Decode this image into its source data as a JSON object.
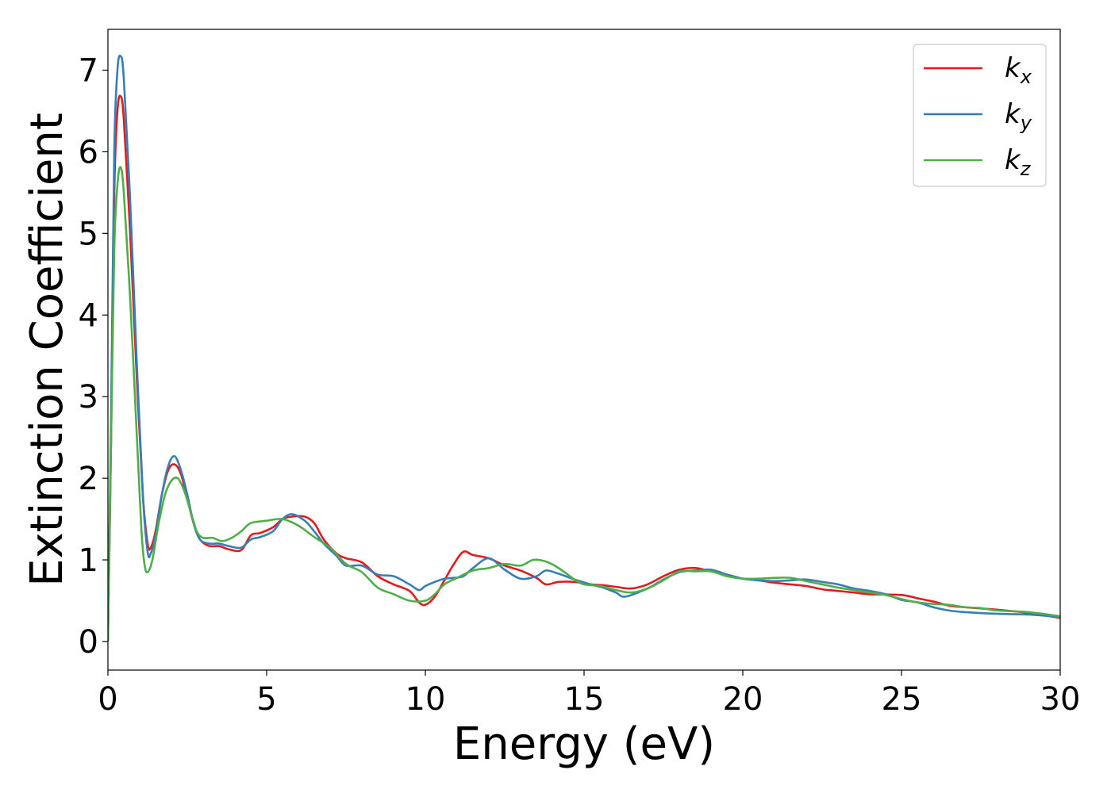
{
  "chart_data": {
    "type": "line",
    "title": "",
    "xlabel": "Energy (eV)",
    "ylabel": "Extinction Coefficient",
    "xlim": [
      0,
      30
    ],
    "ylim": [
      -0.35,
      7.5
    ],
    "xticks": [
      0,
      5,
      10,
      15,
      20,
      25,
      30
    ],
    "yticks": [
      0,
      1,
      2,
      3,
      4,
      5,
      6,
      7
    ],
    "grid": false,
    "legend_position": "top-right",
    "series": [
      {
        "name": "k_x",
        "label_base": "k",
        "label_sub": "x",
        "color": "#e41a1c",
        "points": [
          [
            0,
            0
          ],
          [
            0.1,
            2.5
          ],
          [
            0.2,
            5.5
          ],
          [
            0.3,
            6.5
          ],
          [
            0.4,
            6.68
          ],
          [
            0.5,
            6.4
          ],
          [
            0.7,
            5.0
          ],
          [
            0.9,
            3.3
          ],
          [
            1.1,
            1.8
          ],
          [
            1.25,
            1.2
          ],
          [
            1.35,
            1.15
          ],
          [
            1.5,
            1.35
          ],
          [
            1.7,
            1.8
          ],
          [
            1.9,
            2.1
          ],
          [
            2.1,
            2.17
          ],
          [
            2.3,
            2.05
          ],
          [
            2.5,
            1.75
          ],
          [
            2.7,
            1.45
          ],
          [
            2.9,
            1.25
          ],
          [
            3.2,
            1.17
          ],
          [
            3.5,
            1.17
          ],
          [
            3.8,
            1.13
          ],
          [
            4.2,
            1.12
          ],
          [
            4.5,
            1.3
          ],
          [
            4.8,
            1.33
          ],
          [
            5.2,
            1.4
          ],
          [
            5.5,
            1.5
          ],
          [
            5.8,
            1.53
          ],
          [
            6.2,
            1.53
          ],
          [
            6.5,
            1.45
          ],
          [
            6.8,
            1.25
          ],
          [
            7.2,
            1.08
          ],
          [
            7.5,
            1.02
          ],
          [
            8.0,
            0.97
          ],
          [
            8.5,
            0.8
          ],
          [
            9.0,
            0.7
          ],
          [
            9.5,
            0.62
          ],
          [
            9.8,
            0.48
          ],
          [
            10.0,
            0.45
          ],
          [
            10.3,
            0.55
          ],
          [
            10.6,
            0.75
          ],
          [
            10.9,
            0.95
          ],
          [
            11.2,
            1.1
          ],
          [
            11.5,
            1.06
          ],
          [
            12.0,
            1.02
          ],
          [
            12.5,
            0.93
          ],
          [
            13.0,
            0.87
          ],
          [
            13.5,
            0.78
          ],
          [
            13.8,
            0.7
          ],
          [
            14.2,
            0.73
          ],
          [
            14.7,
            0.73
          ],
          [
            15.2,
            0.7
          ],
          [
            15.6,
            0.69
          ],
          [
            16.0,
            0.67
          ],
          [
            16.5,
            0.65
          ],
          [
            17.0,
            0.7
          ],
          [
            17.5,
            0.8
          ],
          [
            18.0,
            0.88
          ],
          [
            18.5,
            0.9
          ],
          [
            19.0,
            0.86
          ],
          [
            19.5,
            0.82
          ],
          [
            20.0,
            0.77
          ],
          [
            20.5,
            0.75
          ],
          [
            21.0,
            0.72
          ],
          [
            21.5,
            0.7
          ],
          [
            22.0,
            0.68
          ],
          [
            22.5,
            0.64
          ],
          [
            23.0,
            0.62
          ],
          [
            23.5,
            0.6
          ],
          [
            24.0,
            0.58
          ],
          [
            25.0,
            0.57
          ],
          [
            25.5,
            0.53
          ],
          [
            26.0,
            0.49
          ],
          [
            26.5,
            0.44
          ],
          [
            27.0,
            0.42
          ],
          [
            28.0,
            0.39
          ],
          [
            29.0,
            0.35
          ],
          [
            30.0,
            0.29
          ]
        ]
      },
      {
        "name": "k_y",
        "label_base": "k",
        "label_sub": "y",
        "color": "#377eb8",
        "points": [
          [
            0,
            0
          ],
          [
            0.1,
            2.8
          ],
          [
            0.2,
            6.0
          ],
          [
            0.3,
            7.0
          ],
          [
            0.4,
            7.17
          ],
          [
            0.5,
            6.9
          ],
          [
            0.7,
            5.4
          ],
          [
            0.9,
            3.5
          ],
          [
            1.1,
            1.8
          ],
          [
            1.25,
            1.1
          ],
          [
            1.35,
            1.08
          ],
          [
            1.5,
            1.3
          ],
          [
            1.7,
            1.8
          ],
          [
            1.9,
            2.15
          ],
          [
            2.1,
            2.27
          ],
          [
            2.3,
            2.1
          ],
          [
            2.5,
            1.8
          ],
          [
            2.7,
            1.45
          ],
          [
            2.9,
            1.25
          ],
          [
            3.2,
            1.2
          ],
          [
            3.5,
            1.2
          ],
          [
            3.8,
            1.17
          ],
          [
            4.2,
            1.15
          ],
          [
            4.5,
            1.25
          ],
          [
            4.8,
            1.28
          ],
          [
            5.2,
            1.35
          ],
          [
            5.5,
            1.5
          ],
          [
            5.8,
            1.56
          ],
          [
            6.2,
            1.48
          ],
          [
            6.5,
            1.35
          ],
          [
            6.8,
            1.2
          ],
          [
            7.2,
            1.05
          ],
          [
            7.5,
            0.93
          ],
          [
            8.0,
            0.93
          ],
          [
            8.5,
            0.82
          ],
          [
            9.0,
            0.8
          ],
          [
            9.5,
            0.7
          ],
          [
            9.8,
            0.63
          ],
          [
            10.0,
            0.68
          ],
          [
            10.3,
            0.73
          ],
          [
            10.6,
            0.77
          ],
          [
            10.9,
            0.78
          ],
          [
            11.2,
            0.8
          ],
          [
            11.5,
            0.9
          ],
          [
            12.0,
            1.02
          ],
          [
            12.5,
            0.88
          ],
          [
            13.0,
            0.77
          ],
          [
            13.5,
            0.8
          ],
          [
            13.8,
            0.87
          ],
          [
            14.2,
            0.83
          ],
          [
            14.7,
            0.76
          ],
          [
            15.2,
            0.7
          ],
          [
            15.6,
            0.66
          ],
          [
            16.0,
            0.6
          ],
          [
            16.3,
            0.55
          ],
          [
            17.0,
            0.65
          ],
          [
            17.5,
            0.76
          ],
          [
            18.0,
            0.85
          ],
          [
            18.5,
            0.87
          ],
          [
            19.0,
            0.88
          ],
          [
            19.5,
            0.82
          ],
          [
            20.0,
            0.77
          ],
          [
            20.5,
            0.75
          ],
          [
            21.0,
            0.74
          ],
          [
            21.5,
            0.75
          ],
          [
            22.0,
            0.76
          ],
          [
            22.5,
            0.73
          ],
          [
            23.0,
            0.7
          ],
          [
            23.5,
            0.65
          ],
          [
            24.0,
            0.62
          ],
          [
            24.5,
            0.58
          ],
          [
            25.0,
            0.51
          ],
          [
            25.5,
            0.48
          ],
          [
            26.0,
            0.42
          ],
          [
            26.5,
            0.38
          ],
          [
            27.0,
            0.36
          ],
          [
            28.0,
            0.34
          ],
          [
            29.0,
            0.33
          ],
          [
            30.0,
            0.3
          ]
        ]
      },
      {
        "name": "k_z",
        "label_base": "k",
        "label_sub": "z",
        "color": "#4daf4a",
        "points": [
          [
            0,
            0
          ],
          [
            0.1,
            2.5
          ],
          [
            0.2,
            4.8
          ],
          [
            0.3,
            5.6
          ],
          [
            0.4,
            5.81
          ],
          [
            0.5,
            5.5
          ],
          [
            0.7,
            4.2
          ],
          [
            0.9,
            2.6
          ],
          [
            1.05,
            1.4
          ],
          [
            1.15,
            0.95
          ],
          [
            1.25,
            0.85
          ],
          [
            1.4,
            1.0
          ],
          [
            1.6,
            1.45
          ],
          [
            1.8,
            1.8
          ],
          [
            2.0,
            1.97
          ],
          [
            2.2,
            2.0
          ],
          [
            2.4,
            1.85
          ],
          [
            2.6,
            1.6
          ],
          [
            2.8,
            1.35
          ],
          [
            3.0,
            1.27
          ],
          [
            3.3,
            1.27
          ],
          [
            3.6,
            1.23
          ],
          [
            3.9,
            1.27
          ],
          [
            4.2,
            1.35
          ],
          [
            4.5,
            1.45
          ],
          [
            5.0,
            1.48
          ],
          [
            5.5,
            1.5
          ],
          [
            6.0,
            1.42
          ],
          [
            6.5,
            1.28
          ],
          [
            7.0,
            1.15
          ],
          [
            7.5,
            0.95
          ],
          [
            8.0,
            0.85
          ],
          [
            8.5,
            0.66
          ],
          [
            9.0,
            0.58
          ],
          [
            9.5,
            0.5
          ],
          [
            10.0,
            0.5
          ],
          [
            10.3,
            0.58
          ],
          [
            10.6,
            0.7
          ],
          [
            11.0,
            0.78
          ],
          [
            11.5,
            0.87
          ],
          [
            12.0,
            0.9
          ],
          [
            12.5,
            0.95
          ],
          [
            13.0,
            0.93
          ],
          [
            13.4,
            1.0
          ],
          [
            13.8,
            0.98
          ],
          [
            14.2,
            0.9
          ],
          [
            14.7,
            0.76
          ],
          [
            15.0,
            0.7
          ],
          [
            15.5,
            0.68
          ],
          [
            16.0,
            0.63
          ],
          [
            16.5,
            0.6
          ],
          [
            17.0,
            0.65
          ],
          [
            17.5,
            0.75
          ],
          [
            18.0,
            0.86
          ],
          [
            18.5,
            0.86
          ],
          [
            19.0,
            0.86
          ],
          [
            19.5,
            0.8
          ],
          [
            20.0,
            0.77
          ],
          [
            20.5,
            0.77
          ],
          [
            21.0,
            0.78
          ],
          [
            21.5,
            0.78
          ],
          [
            22.0,
            0.74
          ],
          [
            22.5,
            0.7
          ],
          [
            23.0,
            0.66
          ],
          [
            23.5,
            0.63
          ],
          [
            24.0,
            0.6
          ],
          [
            24.5,
            0.57
          ],
          [
            25.0,
            0.52
          ],
          [
            25.5,
            0.48
          ],
          [
            26.0,
            0.46
          ],
          [
            26.5,
            0.45
          ],
          [
            27.0,
            0.42
          ],
          [
            27.5,
            0.41
          ],
          [
            28.0,
            0.38
          ],
          [
            29.0,
            0.36
          ],
          [
            30.0,
            0.31
          ]
        ]
      }
    ]
  }
}
